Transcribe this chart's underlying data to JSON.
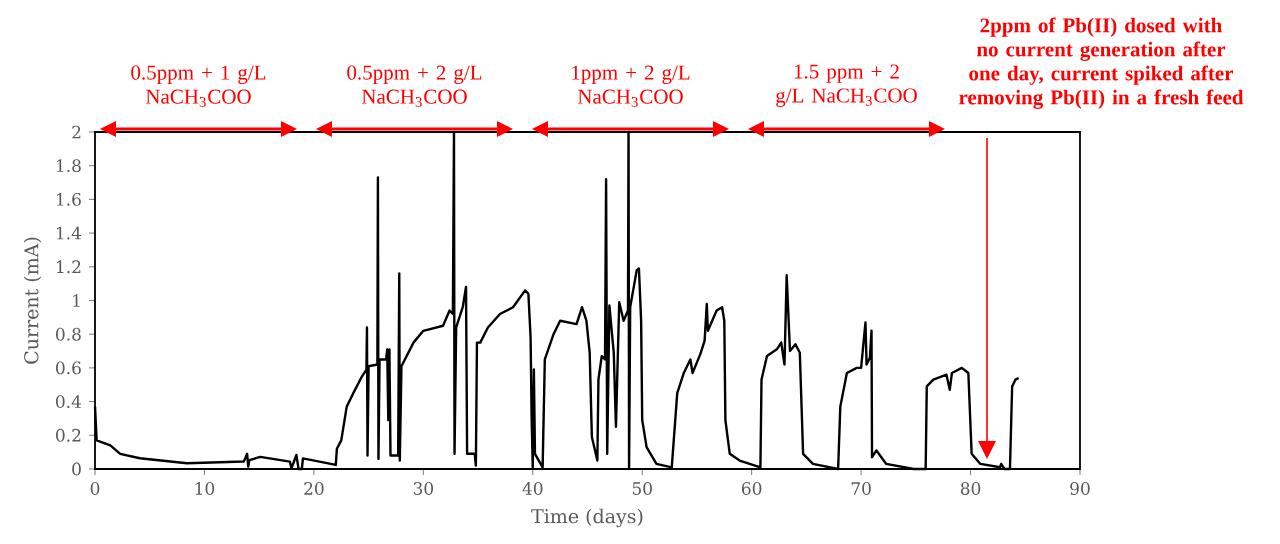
{
  "chart_data": {
    "type": "line",
    "xlabel": "Time (days)",
    "ylabel": "Current (mA)",
    "xlim": [
      0,
      90
    ],
    "xticks": [
      0,
      10,
      20,
      30,
      40,
      50,
      60,
      70,
      80,
      90
    ],
    "ylim": [
      0,
      2
    ],
    "yticks": [
      0,
      0.2,
      0.4,
      0.6,
      0.8,
      1,
      1.2,
      1.4,
      1.6,
      1.8,
      2
    ],
    "grid": false,
    "marker": "none",
    "line_style": "solid",
    "x": [
      0,
      0.15,
      1.4,
      2.3,
      4.1,
      8.4,
      13.6,
      13.9,
      14.0,
      14.1,
      15.1,
      17.8,
      17.95,
      18.4,
      18.6,
      18.9,
      19.0,
      22.0,
      22.1,
      22.5,
      23.0,
      23.6,
      24.4,
      24.8,
      24.85,
      24.9,
      25.0,
      25.8,
      25.85,
      25.9,
      26.0,
      26.6,
      26.7,
      26.8,
      26.9,
      27.0,
      27.7,
      27.8,
      27.85,
      28.0,
      29.1,
      30.0,
      31.8,
      32.4,
      32.7,
      32.8,
      32.85,
      33.0,
      33.6,
      33.9,
      34.0,
      34.7,
      34.8,
      34.9,
      35.2,
      35.9,
      37.0,
      38.2,
      39.3,
      39.6,
      39.8,
      39.9,
      40.0,
      40.1,
      40.2,
      40.9,
      41.1,
      41.9,
      42.5,
      44.0,
      44.5,
      44.9,
      45.2,
      45.4,
      45.9,
      46.0,
      46.3,
      46.6,
      46.7,
      46.8,
      47.0,
      47.4,
      47.6,
      47.9,
      48.3,
      48.7,
      48.75,
      48.8,
      48.9,
      49.5,
      49.7,
      49.9,
      50.0,
      50.4,
      51.3,
      52.7,
      53.2,
      53.8,
      54.4,
      54.6,
      55.3,
      55.7,
      55.9,
      56.0,
      56.8,
      57.3,
      57.5,
      57.6,
      58.0,
      58.9,
      60.8,
      60.9,
      61.4,
      62.3,
      62.7,
      63.0,
      63.2,
      63.5,
      64.0,
      64.4,
      64.7,
      65.6,
      67.9,
      68.1,
      68.7,
      69.6,
      70.0,
      70.4,
      70.5,
      70.8,
      70.95,
      71.0,
      71.4,
      72.3,
      74.8,
      75.9,
      76.0,
      76.6,
      77.8,
      78.1,
      78.3,
      79.2,
      79.8,
      80.1,
      80.9,
      82.7,
      82.8,
      83.1,
      83.6,
      83.8,
      84.1,
      84.4
    ],
    "series": [
      {
        "color": "#000000",
        "values": [
          0.37,
          0.17,
          0.14,
          0.09,
          0.064,
          0.034,
          0.044,
          0.09,
          0.014,
          0.052,
          0.072,
          0.044,
          0.004,
          0.083,
          0,
          0,
          0.063,
          0.024,
          0.12,
          0.17,
          0.37,
          0.45,
          0.55,
          0.59,
          0.84,
          0.08,
          0.61,
          0.62,
          1.73,
          0.06,
          0.65,
          0.65,
          0.71,
          0.29,
          0.71,
          0.08,
          0.08,
          1.16,
          0.05,
          0.61,
          0.75,
          0.82,
          0.85,
          0.94,
          0.92,
          2,
          0.09,
          0.84,
          0.96,
          1.08,
          0.09,
          0.09,
          0.02,
          0.75,
          0.75,
          0.84,
          0.92,
          0.96,
          1.06,
          1.04,
          0.78,
          0.29,
          0.01,
          0.59,
          0.09,
          0.01,
          0.65,
          0.8,
          0.88,
          0.86,
          0.96,
          0.88,
          0.69,
          0.19,
          0.05,
          0.53,
          0.67,
          0.65,
          1.72,
          0.09,
          0.97,
          0.69,
          0.25,
          0.99,
          0.88,
          0.94,
          2,
          0,
          0.96,
          1.18,
          1.19,
          0.88,
          0.29,
          0.13,
          0.03,
          0.01,
          0.45,
          0.57,
          0.65,
          0.57,
          0.68,
          0.76,
          0.98,
          0.82,
          0.94,
          0.96,
          0.88,
          0.29,
          0.09,
          0.05,
          0.01,
          0.53,
          0.67,
          0.71,
          0.75,
          0.62,
          1.15,
          0.7,
          0.74,
          0.69,
          0.09,
          0.03,
          0,
          0.37,
          0.57,
          0.6,
          0.6,
          0.87,
          0.62,
          0.66,
          0.82,
          0.07,
          0.11,
          0.03,
          0,
          0,
          0.49,
          0.53,
          0.56,
          0.47,
          0.57,
          0.6,
          0.57,
          0.09,
          0.03,
          0.01,
          0.03,
          0,
          0,
          0.49,
          0.53,
          0.54
        ]
      }
    ],
    "annotations": [
      "0.5ppm + 1 g/L NaCH$_{3}$COO",
      "0.5ppm + 2 g/L NaCH$_{3}$COO",
      "1ppm + 2 g/L NaCH$_{3}$COO",
      "1.5 ppm + 2 g/L NaCH$_{3}$COO",
      "2ppm of Pb(II) dosed with no current generation after one day, current spiked after removing Pb(II) in a fresh feed"
    ]
  }
}
